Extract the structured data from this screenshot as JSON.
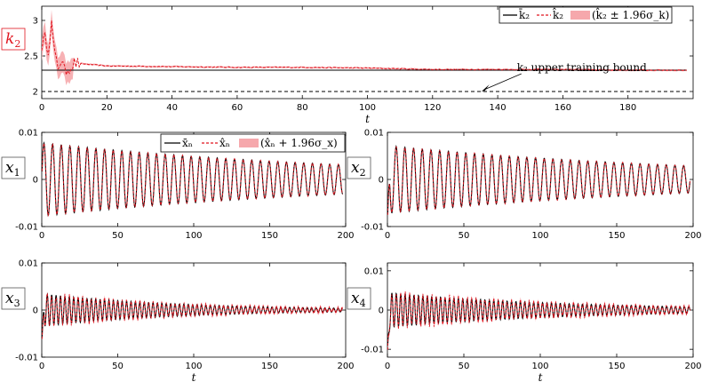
{
  "chart_data": [
    {
      "type": "line",
      "panel": "k2",
      "ylabel": "k2",
      "xlabel": "t",
      "xlim": [
        0,
        200
      ],
      "ylim": [
        1.9,
        3.2
      ],
      "xticks": [
        0,
        20,
        40,
        60,
        80,
        100,
        120,
        140,
        160,
        180
      ],
      "yticks": [
        2,
        2.5,
        3
      ],
      "grid": false,
      "legend": "top-right",
      "legend_labels": [
        "k̄₂",
        "k̂₂",
        "(k̂₂ ± 1.96σ_k)"
      ],
      "series": [
        {
          "name": "k̄₂",
          "style": "solid-black",
          "x": [
            0,
            198
          ],
          "y": [
            2.3,
            2.3
          ]
        },
        {
          "name": "k̂₂",
          "style": "dashed-red",
          "x": [
            0,
            1,
            2,
            3,
            4,
            5,
            6,
            7,
            8,
            10,
            15,
            20,
            40,
            60,
            80,
            100,
            120,
            140,
            160,
            180,
            198
          ],
          "y": [
            2.65,
            2.75,
            2.6,
            2.95,
            2.5,
            2.35,
            2.45,
            2.28,
            2.32,
            2.4,
            2.38,
            2.36,
            2.35,
            2.34,
            2.34,
            2.33,
            2.31,
            2.31,
            2.31,
            2.3,
            2.3
          ]
        },
        {
          "name": "upper training bound",
          "style": "dashed-black",
          "x": [
            0,
            198
          ],
          "y": [
            2.0,
            2.0
          ]
        }
      ],
      "annotation": {
        "text": "k₂ upper training bound",
        "x": 135,
        "y": 2.0
      }
    },
    {
      "type": "line",
      "panel": "x1",
      "ylabel": "x1",
      "xlabel": "",
      "xlim": [
        0,
        200
      ],
      "ylim": [
        -0.01,
        0.01
      ],
      "xticks": [
        0,
        50,
        100,
        150,
        200
      ],
      "yticks": [
        -0.01,
        0,
        0.01
      ],
      "legend": "top-right",
      "legend_labels": [
        "x̄ₙ",
        "x̂ₙ",
        "(x̂ₙ + 1.96σ_x)"
      ],
      "signal": {
        "amplitude": 0.0078,
        "decay": 0.0046,
        "period": 5.7,
        "phase": 0,
        "noise": 0,
        "t_end": 198
      }
    },
    {
      "type": "line",
      "panel": "x2",
      "ylabel": "x2",
      "xlabel": "",
      "xlim": [
        0,
        200
      ],
      "ylim": [
        -0.01,
        0.01
      ],
      "xticks": [
        0,
        50,
        100,
        150,
        200
      ],
      "yticks": [
        -0.01,
        0,
        0.01
      ],
      "signal": {
        "amplitude": 0.0072,
        "decay": 0.0046,
        "period": 5.7,
        "phase": 1.57,
        "noise": 0,
        "t_end": 198,
        "start_dip": -0.0095
      }
    },
    {
      "type": "line",
      "panel": "x3",
      "ylabel": "x3",
      "xlabel": "t",
      "xlim": [
        0,
        200
      ],
      "ylim": [
        -0.01,
        0.01
      ],
      "xticks": [
        0,
        50,
        100,
        150,
        200
      ],
      "yticks": [
        -0.01,
        0,
        0.01
      ],
      "signal": {
        "amplitude": 0.0035,
        "decay": 0.011,
        "period": 2.9,
        "phase": 0,
        "noise": 0.0012,
        "t_end": 198,
        "start_dip": -0.007
      }
    },
    {
      "type": "line",
      "panel": "x4",
      "ylabel": "x4",
      "xlabel": "t",
      "xlim": [
        0,
        200
      ],
      "ylim": [
        -0.012,
        0.012
      ],
      "xticks": [
        0,
        50,
        100,
        150,
        200
      ],
      "yticks": [
        -0.01,
        0,
        0.01
      ],
      "signal": {
        "amplitude": 0.0045,
        "decay": 0.0085,
        "period": 2.9,
        "phase": 1.57,
        "noise": 0.002,
        "t_end": 198,
        "start_dip": -0.011
      }
    }
  ],
  "colors": {
    "truth": "#000000",
    "estimate": "#e0141e",
    "band": "#f6a8ac"
  }
}
